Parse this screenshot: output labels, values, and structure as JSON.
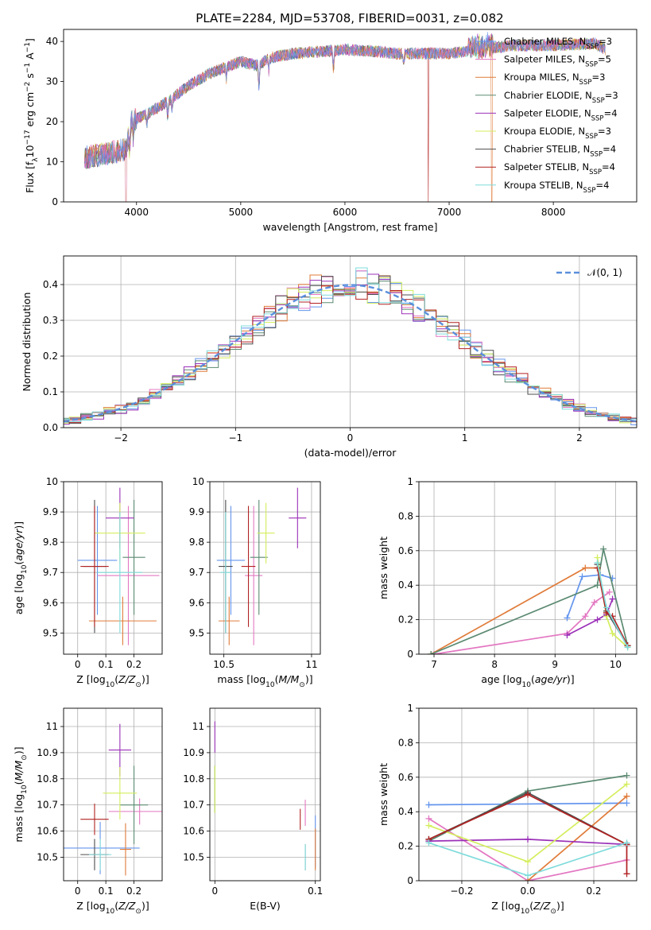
{
  "figure_title": "PLATE=2284, MJD=53708, FIBERID=0031, z=0.082",
  "colors": {
    "chabrier_miles": "#6495ED",
    "salpeter_miles": "#E377C2",
    "kroupa_miles": "#E07B39",
    "chabrier_elodie": "#5B8A72",
    "salpeter_elodie": "#9B30B8",
    "kroupa_elodie": "#D4EE5E",
    "chabrier_stelib": "#4D4D4D",
    "salpeter_stelib": "#B22222",
    "kroupa_stelib": "#7FDBDB",
    "normal_curve": "#5B8FDB",
    "grid": "#B0B0B0"
  },
  "chart_data": [
    {
      "id": "spectrum",
      "type": "line",
      "title": "PLATE=2284, MJD=53708, FIBERID=0031, z=0.082",
      "xlabel": "wavelength [Angstrom, rest frame]",
      "ylabel": "Flux [f_λ10^-17 erg cm^-2 s^-1 A^-1]",
      "xlim": [
        3300,
        8800
      ],
      "ylim": [
        0,
        43
      ],
      "x_ticks": [
        4000,
        5000,
        6000,
        7000,
        8000
      ],
      "y_ticks": [
        0,
        10,
        20,
        30,
        40
      ],
      "grid": false,
      "legend_position": "right",
      "legend": [
        {
          "label": "Chabrier MILES, N",
          "sub": "SSP",
          "tail": "=3"
        },
        {
          "label": "Salpeter MILES, N",
          "sub": "SSP",
          "tail": "=5"
        },
        {
          "label": "Kroupa MILES, N",
          "sub": "SSP",
          "tail": "=3"
        },
        {
          "label": "Chabrier ELODIE, N",
          "sub": "SSP",
          "tail": "=3"
        },
        {
          "label": "Salpeter ELODIE, N",
          "sub": "SSP",
          "tail": "=4"
        },
        {
          "label": "Kroupa ELODIE, N",
          "sub": "SSP",
          "tail": "=3"
        },
        {
          "label": "Chabrier STELIB, N",
          "sub": "SSP",
          "tail": "=4"
        },
        {
          "label": "Salpeter STELIB, N",
          "sub": "SSP",
          "tail": "=4"
        },
        {
          "label": "Kroupa STELIB, N",
          "sub": "SSP",
          "tail": "=4"
        }
      ],
      "continuum": [
        {
          "x": 3500,
          "y": 11
        },
        {
          "x": 3700,
          "y": 12
        },
        {
          "x": 3900,
          "y": 13
        },
        {
          "x": 3950,
          "y": 20
        },
        {
          "x": 4100,
          "y": 22
        },
        {
          "x": 4300,
          "y": 25
        },
        {
          "x": 4500,
          "y": 29
        },
        {
          "x": 4700,
          "y": 32
        },
        {
          "x": 4900,
          "y": 34
        },
        {
          "x": 5000,
          "y": 35
        },
        {
          "x": 5150,
          "y": 34
        },
        {
          "x": 5300,
          "y": 36
        },
        {
          "x": 5500,
          "y": 37
        },
        {
          "x": 5800,
          "y": 37.5
        },
        {
          "x": 6000,
          "y": 38
        },
        {
          "x": 6300,
          "y": 37.5
        },
        {
          "x": 6500,
          "y": 37
        },
        {
          "x": 6700,
          "y": 37
        },
        {
          "x": 7000,
          "y": 37
        },
        {
          "x": 7300,
          "y": 38
        },
        {
          "x": 7600,
          "y": 39
        },
        {
          "x": 8000,
          "y": 39
        },
        {
          "x": 8400,
          "y": 39.5
        },
        {
          "x": 8500,
          "y": 38
        }
      ]
    },
    {
      "id": "residuals",
      "type": "histogram",
      "xlabel": "(data-model)/error",
      "ylabel": "Normed distribution",
      "xlim": [
        -2.5,
        2.5
      ],
      "ylim": [
        0,
        0.48
      ],
      "x_ticks": [
        -2,
        -1,
        0,
        1,
        2
      ],
      "x_tick_labels": [
        "−2",
        "−1",
        "0",
        "1",
        "2"
      ],
      "y_ticks": [
        0.0,
        0.1,
        0.2,
        0.3,
        0.4
      ],
      "y_tick_labels": [
        "0.0",
        "0.1",
        "0.2",
        "0.3",
        "0.4"
      ],
      "grid": true,
      "legend_position": "top-right",
      "legend_label": "𝒩(0, 1)",
      "normal_curve": {
        "mean": 0,
        "sd": 1
      }
    },
    {
      "id": "age_vs_Z",
      "type": "scatter",
      "xlabel": "Z [log10(Z/Z⊙)]",
      "ylabel": "age  [log10(age/yr)]",
      "xlim": [
        -0.05,
        0.3
      ],
      "ylim": [
        9.43,
        10.0
      ],
      "x_ticks": [
        0.0,
        0.1,
        0.2
      ],
      "y_ticks": [
        9.5,
        9.6,
        9.7,
        9.8,
        9.9,
        10.0
      ],
      "grid": true,
      "points": [
        {
          "x": 0.07,
          "y": 9.74,
          "xerr": 0.07,
          "yerr": 0.18,
          "color": "chabrier_miles"
        },
        {
          "x": 0.18,
          "y": 9.69,
          "xerr": 0.11,
          "yerr": 0.23,
          "color": "salpeter_miles"
        },
        {
          "x": 0.16,
          "y": 9.54,
          "xerr": 0.12,
          "yerr": 0.08,
          "color": "kroupa_miles"
        },
        {
          "x": 0.2,
          "y": 9.75,
          "xerr": 0.04,
          "yerr": 0.19,
          "color": "chabrier_elodie"
        },
        {
          "x": 0.15,
          "y": 9.88,
          "xerr": 0.05,
          "yerr": 0.1,
          "color": "salpeter_elodie"
        },
        {
          "x": 0.15,
          "y": 9.83,
          "xerr": 0.09,
          "yerr": 0.1,
          "color": "kroupa_elodie"
        },
        {
          "x": 0.06,
          "y": 9.72,
          "xerr": 0.04,
          "yerr": 0.22,
          "color": "chabrier_stelib"
        },
        {
          "x": 0.06,
          "y": 9.72,
          "xerr": 0.05,
          "yerr": 0.2,
          "color": "salpeter_stelib"
        },
        {
          "x": 0.15,
          "y": 9.7,
          "xerr": 0.08,
          "yerr": 0.2,
          "color": "kroupa_stelib"
        }
      ]
    },
    {
      "id": "age_vs_mass",
      "type": "scatter",
      "xlabel": "mass [log10(M/M⊙)]",
      "ylabel": "",
      "xlim": [
        10.42,
        11.05
      ],
      "ylim": [
        9.43,
        10.0
      ],
      "x_ticks": [
        10.5,
        11.0
      ],
      "y_ticks": [
        9.5,
        9.6,
        9.7,
        9.8,
        9.9,
        10.0
      ],
      "grid": true,
      "points": [
        {
          "x": 10.54,
          "y": 9.74,
          "xerr": 0.08,
          "yerr": 0.18,
          "color": "chabrier_miles"
        },
        {
          "x": 10.67,
          "y": 9.69,
          "xerr": 0.05,
          "yerr": 0.23,
          "color": "salpeter_miles"
        },
        {
          "x": 10.53,
          "y": 9.54,
          "xerr": 0.06,
          "yerr": 0.08,
          "color": "kroupa_miles"
        },
        {
          "x": 10.7,
          "y": 9.75,
          "xerr": 0.05,
          "yerr": 0.19,
          "color": "chabrier_elodie"
        },
        {
          "x": 10.92,
          "y": 9.88,
          "xerr": 0.05,
          "yerr": 0.1,
          "color": "salpeter_elodie"
        },
        {
          "x": 10.74,
          "y": 9.83,
          "xerr": 0.05,
          "yerr": 0.1,
          "color": "kroupa_elodie"
        },
        {
          "x": 10.51,
          "y": 9.72,
          "xerr": 0.04,
          "yerr": 0.22,
          "color": "chabrier_stelib"
        },
        {
          "x": 10.64,
          "y": 9.72,
          "xerr": 0.04,
          "yerr": 0.2,
          "color": "salpeter_stelib"
        },
        {
          "x": 10.51,
          "y": 9.7,
          "xerr": 0.03,
          "yerr": 0.2,
          "color": "kroupa_stelib"
        }
      ]
    },
    {
      "id": "weight_vs_age",
      "type": "line",
      "xlabel": "age  [log10(age/yr)]",
      "ylabel": "mass weight",
      "xlim": [
        6.75,
        10.35
      ],
      "ylim": [
        0,
        1.0
      ],
      "x_ticks": [
        7,
        8,
        9,
        10
      ],
      "y_ticks": [
        0.0,
        0.2,
        0.4,
        0.6,
        0.8,
        1.0
      ],
      "grid": true,
      "series": [
        {
          "color": "chabrier_miles",
          "points": [
            [
              9.2,
              0.21
            ],
            [
              9.45,
              0.45
            ],
            [
              9.75,
              0.46
            ],
            [
              9.95,
              0.44
            ]
          ]
        },
        {
          "color": "salpeter_miles",
          "points": [
            [
              7.0,
              0.0
            ],
            [
              9.2,
              0.12
            ],
            [
              9.5,
              0.22
            ],
            [
              9.65,
              0.3
            ],
            [
              9.9,
              0.36
            ]
          ]
        },
        {
          "color": "kroupa_miles",
          "points": [
            [
              6.95,
              0.0
            ],
            [
              9.5,
              0.5
            ],
            [
              9.7,
              0.5
            ]
          ]
        },
        {
          "color": "chabrier_elodie",
          "points": [
            [
              6.95,
              0.0
            ],
            [
              9.7,
              0.4
            ],
            [
              9.8,
              0.61
            ],
            [
              10.2,
              0.05
            ]
          ]
        },
        {
          "color": "salpeter_elodie",
          "points": [
            [
              9.2,
              0.11
            ],
            [
              9.7,
              0.2
            ],
            [
              9.85,
              0.23
            ],
            [
              9.95,
              0.32
            ]
          ]
        },
        {
          "color": "kroupa_elodie",
          "points": [
            [
              9.7,
              0.56
            ],
            [
              9.85,
              0.22
            ],
            [
              9.95,
              0.12
            ],
            [
              10.2,
              0.04
            ]
          ]
        },
        {
          "color": "chabrier_stelib",
          "points": [
            [
              9.7,
              0.52
            ],
            [
              9.85,
              0.25
            ],
            [
              10.2,
              0.05
            ]
          ]
        },
        {
          "color": "salpeter_stelib",
          "points": [
            [
              9.7,
              0.5
            ],
            [
              9.85,
              0.24
            ],
            [
              9.95,
              0.22
            ],
            [
              10.2,
              0.05
            ]
          ]
        },
        {
          "color": "kroupa_stelib",
          "points": [
            [
              9.7,
              0.53
            ],
            [
              9.85,
              0.27
            ],
            [
              10.2,
              0.04
            ]
          ]
        }
      ]
    },
    {
      "id": "mass_vs_Z",
      "type": "scatter",
      "xlabel": "Z [log10(Z/Z⊙)]",
      "ylabel": "mass [log10(M/M⊙)]",
      "xlim": [
        -0.05,
        0.3
      ],
      "ylim": [
        10.41,
        11.07
      ],
      "x_ticks": [
        0.0,
        0.1,
        0.2
      ],
      "y_ticks": [
        10.5,
        10.6,
        10.7,
        10.8,
        10.9,
        11.0
      ],
      "grid": true,
      "points": [
        {
          "x": 0.08,
          "y": 10.535,
          "xerr": 0.14,
          "yerr": 0.1,
          "color": "chabrier_miles"
        },
        {
          "x": 0.22,
          "y": 10.675,
          "xerr": 0.11,
          "yerr": 0.05,
          "color": "salpeter_miles"
        },
        {
          "x": 0.17,
          "y": 10.53,
          "xerr": 0.02,
          "yerr": 0.1,
          "color": "kroupa_miles"
        },
        {
          "x": 0.2,
          "y": 10.7,
          "xerr": 0.05,
          "yerr": 0.15,
          "color": "chabrier_elodie"
        },
        {
          "x": 0.15,
          "y": 10.91,
          "xerr": 0.04,
          "yerr": 0.1,
          "color": "salpeter_elodie"
        },
        {
          "x": 0.15,
          "y": 10.745,
          "xerr": 0.06,
          "yerr": 0.1,
          "color": "kroupa_elodie"
        },
        {
          "x": 0.06,
          "y": 10.51,
          "xerr": 0.05,
          "yerr": 0.06,
          "color": "chabrier_stelib"
        },
        {
          "x": 0.06,
          "y": 10.645,
          "xerr": 0.05,
          "yerr": 0.06,
          "color": "salpeter_stelib"
        },
        {
          "x": 0.08,
          "y": 10.51,
          "xerr": 0.04,
          "yerr": 0.06,
          "color": "kroupa_stelib"
        }
      ]
    },
    {
      "id": "mass_vs_EBV",
      "type": "scatter",
      "xlabel": "E(B-V)",
      "ylabel": "",
      "xlim": [
        -0.005,
        0.105
      ],
      "ylim": [
        10.41,
        11.07
      ],
      "x_ticks": [
        0.0,
        0.1
      ],
      "y_ticks": [
        10.5,
        10.6,
        10.7,
        10.8,
        10.9,
        11.0
      ],
      "grid": true,
      "points": [
        {
          "x": 0.1,
          "y": 10.56,
          "xerr": 0.0,
          "yerr": 0.1,
          "color": "chabrier_miles"
        },
        {
          "x": 0.09,
          "y": 10.67,
          "xerr": 0.0,
          "yerr": 0.05,
          "color": "salpeter_miles"
        },
        {
          "x": 0.1,
          "y": 10.53,
          "xerr": 0.0,
          "yerr": 0.08,
          "color": "kroupa_miles"
        },
        {
          "x": 0.0,
          "y": 10.76,
          "xerr": 0.0,
          "yerr": 0.09,
          "color": "chabrier_elodie"
        },
        {
          "x": 0.0,
          "y": 10.96,
          "xerr": 0.0,
          "yerr": 0.06,
          "color": "salpeter_elodie"
        },
        {
          "x": 0.0,
          "y": 10.76,
          "xerr": 0.0,
          "yerr": 0.09,
          "color": "kroupa_elodie"
        },
        {
          "x": 0.09,
          "y": 10.5,
          "xerr": 0.0,
          "yerr": 0.05,
          "color": "chabrier_stelib"
        },
        {
          "x": 0.085,
          "y": 10.645,
          "xerr": 0.0,
          "yerr": 0.04,
          "color": "salpeter_stelib"
        },
        {
          "x": 0.09,
          "y": 10.5,
          "xerr": 0.0,
          "yerr": 0.05,
          "color": "kroupa_stelib"
        }
      ]
    },
    {
      "id": "weight_vs_Z",
      "type": "line",
      "xlabel": "Z [log10(Z/Z⊙)]",
      "ylabel": "mass weight",
      "xlim": [
        -0.33,
        0.33
      ],
      "ylim": [
        0,
        1.0
      ],
      "x_ticks": [
        -0.2,
        0.0,
        0.2
      ],
      "x_tick_labels": [
        "−0.2",
        "0.0",
        "0.2"
      ],
      "y_ticks": [
        0.0,
        0.2,
        0.4,
        0.6,
        0.8,
        1.0
      ],
      "grid": true,
      "series": [
        {
          "color": "chabrier_miles",
          "points": [
            [
              -0.3,
              0.44
            ],
            [
              0.3,
              0.45
            ]
          ]
        },
        {
          "color": "salpeter_miles",
          "points": [
            [
              -0.3,
              0.36
            ],
            [
              0.0,
              0.0
            ],
            [
              0.3,
              0.12
            ]
          ]
        },
        {
          "color": "kroupa_miles",
          "points": [
            [
              0.0,
              0.0
            ],
            [
              0.3,
              0.49
            ]
          ]
        },
        {
          "color": "chabrier_elodie",
          "points": [
            [
              -0.3,
              0.23
            ],
            [
              0.0,
              0.52
            ],
            [
              0.3,
              0.61
            ]
          ]
        },
        {
          "color": "salpeter_elodie",
          "points": [
            [
              -0.3,
              0.23
            ],
            [
              0.0,
              0.24
            ],
            [
              0.3,
              0.21
            ]
          ]
        },
        {
          "color": "kroupa_elodie",
          "points": [
            [
              -0.3,
              0.32
            ],
            [
              0.0,
              0.11
            ],
            [
              0.3,
              0.56
            ]
          ]
        },
        {
          "color": "chabrier_stelib",
          "points": [
            [
              -0.3,
              0.24
            ],
            [
              0.0,
              0.51
            ],
            [
              0.3,
              0.21
            ]
          ]
        },
        {
          "color": "salpeter_stelib",
          "points": [
            [
              -0.3,
              0.24
            ],
            [
              0.0,
              0.5
            ],
            [
              0.3,
              0.21
            ],
            [
              0.3,
              0.04
            ]
          ]
        },
        {
          "color": "kroupa_stelib",
          "points": [
            [
              -0.3,
              0.22
            ],
            [
              0.0,
              0.03
            ],
            [
              0.3,
              0.22
            ]
          ]
        }
      ]
    }
  ]
}
